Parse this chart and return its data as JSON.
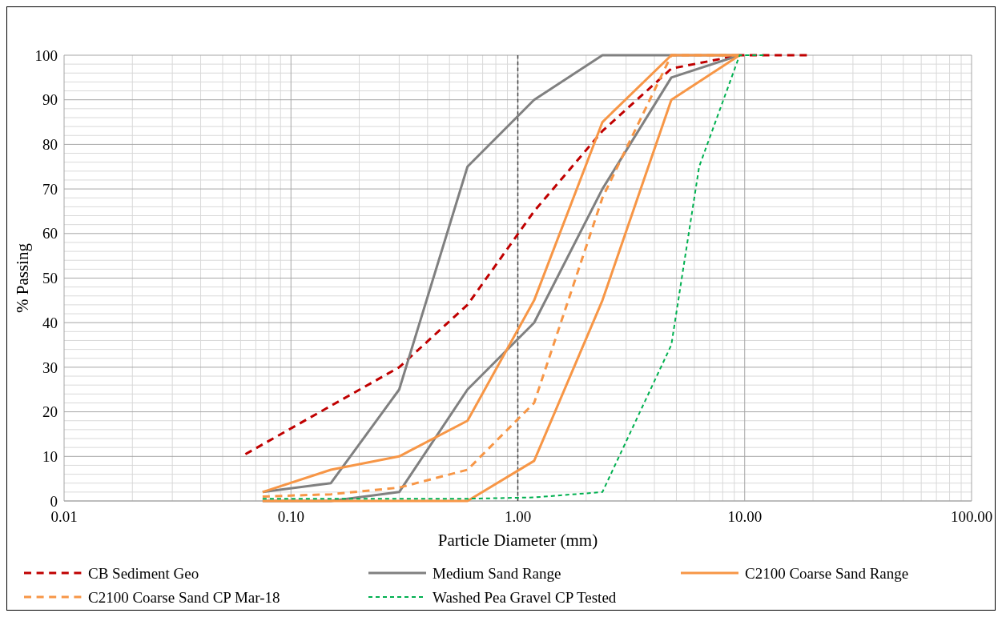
{
  "chart_data": {
    "type": "line",
    "xlabel": "Particle Diameter (mm)",
    "ylabel": "% Passing",
    "log": "x",
    "grid": true,
    "legend": "bottom",
    "xlim": [
      0.01,
      100
    ],
    "xticks": [
      {
        "value": 0.01,
        "label": "0.01"
      },
      {
        "value": 0.1,
        "label": "0.10"
      },
      {
        "value": 1,
        "label": "1.00"
      },
      {
        "value": 10,
        "label": "10.00"
      },
      {
        "value": 100,
        "label": "100.00"
      }
    ],
    "ylim": [
      0,
      100
    ],
    "yticks": [
      0,
      10,
      20,
      30,
      40,
      50,
      60,
      70,
      80,
      90,
      100
    ],
    "ref_lines": [
      {
        "axis": "x",
        "value": 1,
        "color": "#404040",
        "line_style": "dashed"
      }
    ],
    "series": [
      {
        "name": "CB Sediment Geo",
        "color": "#c00000",
        "line_style": "dashed",
        "x": [
          0.063,
          0.3,
          0.6,
          1.18,
          2.36,
          4.75,
          9.5,
          19
        ],
        "values": [
          10.5,
          30,
          44,
          65,
          83,
          97,
          100,
          100
        ]
      },
      {
        "name": "Medium Sand Range",
        "color": "#808080",
        "line_style": "solid",
        "x": [
          0.075,
          0.15,
          0.3,
          0.6,
          1.18,
          2.36,
          4.75,
          9.5
        ],
        "values": [
          2,
          4,
          25,
          75,
          90,
          100,
          100,
          100
        ]
      },
      {
        "color": "#808080",
        "line_style": "solid",
        "x": [
          0.075,
          0.15,
          0.3,
          0.6,
          1.18,
          2.36,
          4.75,
          9.5
        ],
        "values": [
          0,
          0,
          2,
          25,
          40,
          70,
          95,
          100
        ]
      },
      {
        "name": "C2100 Coarse Sand Range",
        "color": "#f79646",
        "line_style": "solid",
        "x": [
          0.075,
          0.15,
          0.3,
          0.6,
          1.18,
          2.36,
          4.75,
          9.5
        ],
        "values": [
          2,
          7,
          10,
          18,
          45,
          85,
          100,
          100
        ]
      },
      {
        "color": "#f79646",
        "line_style": "solid",
        "x": [
          0.075,
          0.15,
          0.3,
          0.6,
          1.18,
          2.36,
          4.75,
          9.5
        ],
        "values": [
          0,
          0,
          0,
          0,
          9,
          45,
          90,
          100
        ]
      },
      {
        "name": "C2100 Coarse Sand CP Mar-18",
        "color": "#f79646",
        "line_style": "dashed",
        "x": [
          0.075,
          0.15,
          0.3,
          0.6,
          1.18,
          2.36,
          4.75,
          9.5
        ],
        "values": [
          1,
          1.5,
          3,
          7,
          22,
          68,
          100,
          100
        ]
      },
      {
        "name": "Washed Pea Gravel CP Tested",
        "color": "#00b050",
        "line_style": "dotted",
        "x": [
          0.075,
          0.15,
          0.3,
          0.6,
          1.18,
          2.36,
          4.75,
          6.3,
          9.5,
          12.5
        ],
        "values": [
          0.5,
          0.5,
          0.5,
          0.5,
          0.8,
          2,
          35,
          75,
          100,
          100
        ]
      }
    ]
  }
}
